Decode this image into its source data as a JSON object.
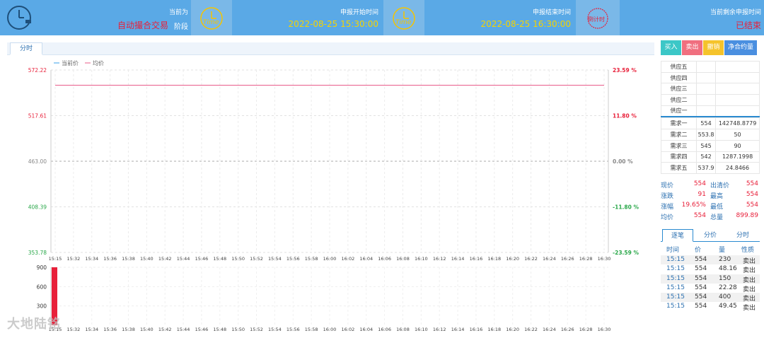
{
  "header": {
    "current_label": "当前为",
    "current_value": "自动撮合交易",
    "current_suffix": "阶段",
    "start_label": "申报开始时间",
    "start_value": "2022-08-25 15:30:00",
    "end_label": "申报结束时间",
    "end_value": "2022-08-25 16:30:00",
    "remain_label": "当前剩余申报时间",
    "remain_value": "已结束",
    "time_icon_text": "Time",
    "countdown_icon_text": "倒计时"
  },
  "tabs": {
    "active": "分时"
  },
  "buttons": {
    "buy": "买入",
    "sell": "卖出",
    "cancel": "撤销",
    "net": "净合约量"
  },
  "order_book": {
    "asks": [
      {
        "name": "供应五",
        "price": "",
        "qty": ""
      },
      {
        "name": "供应四",
        "price": "",
        "qty": ""
      },
      {
        "name": "供应三",
        "price": "",
        "qty": ""
      },
      {
        "name": "供应二",
        "price": "",
        "qty": ""
      },
      {
        "name": "供应一",
        "price": "",
        "qty": ""
      }
    ],
    "bids": [
      {
        "name": "需求一",
        "price": "554",
        "qty": "142748.8779"
      },
      {
        "name": "需求二",
        "price": "553.8",
        "qty": "50"
      },
      {
        "name": "需求三",
        "price": "545",
        "qty": "90"
      },
      {
        "name": "需求四",
        "price": "542",
        "qty": "1287.1998"
      },
      {
        "name": "需求五",
        "price": "537.9",
        "qty": "24.8466"
      }
    ]
  },
  "quote": [
    {
      "l1": "现价",
      "v1": "554",
      "l2": "出清价",
      "v2": "554"
    },
    {
      "l1": "涨跌",
      "v1": "91",
      "l2": "最高",
      "v2": "554"
    },
    {
      "l1": "涨幅",
      "v1": "19.65%",
      "l2": "最低",
      "v2": "554"
    },
    {
      "l1": "均价",
      "v1": "554",
      "l2": "总量",
      "v2": "899.89"
    }
  ],
  "deal_tabs": [
    "逐笔",
    "分价",
    "分时"
  ],
  "deals": {
    "columns": [
      "时间",
      "价",
      "量",
      "性质"
    ],
    "rows": [
      {
        "time": "15:15",
        "price": "554",
        "qty": "230",
        "type": "卖出"
      },
      {
        "time": "15:15",
        "price": "554",
        "qty": "48.16",
        "type": "卖出"
      },
      {
        "time": "15:15",
        "price": "554",
        "qty": "150",
        "type": "卖出"
      },
      {
        "time": "15:15",
        "price": "554",
        "qty": "22.28",
        "type": "卖出"
      },
      {
        "time": "15:15",
        "price": "554",
        "qty": "400",
        "type": "卖出"
      },
      {
        "time": "15:15",
        "price": "554",
        "qty": "49.45",
        "type": "卖出"
      }
    ]
  },
  "watermark": "大地陆铭",
  "chart_data": {
    "type": "line",
    "legend": [
      "当前价",
      "均价"
    ],
    "y_left_ticks": [
      "572.22",
      "517.61",
      "463.00",
      "408.39",
      "353.78"
    ],
    "y_right_ticks": [
      "23.59 %",
      "11.80 %",
      "0.00 %",
      "-11.80 %",
      "-23.59 %"
    ],
    "ylim": [
      353.78,
      572.22
    ],
    "x_ticks": [
      "15:15",
      "15:32",
      "15:34",
      "15:36",
      "15:38",
      "15:40",
      "15:42",
      "15:44",
      "15:46",
      "15:48",
      "15:50",
      "15:52",
      "15:54",
      "15:56",
      "15:58",
      "16:00",
      "16:02",
      "16:04",
      "16:06",
      "16:08",
      "16:10",
      "16:12",
      "16:14",
      "16:16",
      "16:18",
      "16:20",
      "16:22",
      "16:24",
      "16:26",
      "16:28",
      "16:30"
    ],
    "series": [
      {
        "name": "当前价",
        "values": [
          554,
          554
        ]
      },
      {
        "name": "均价",
        "values": [
          554,
          554
        ]
      }
    ],
    "volume": {
      "y_ticks": [
        "900",
        "600",
        "300"
      ],
      "ylim": [
        0,
        900
      ],
      "bars": [
        {
          "x": "15:15",
          "value": 900
        }
      ]
    },
    "colors": {
      "up": "#e8203a",
      "down": "#2aa84a",
      "avg": "#e85c8a",
      "price": "#3aa0e8"
    }
  }
}
